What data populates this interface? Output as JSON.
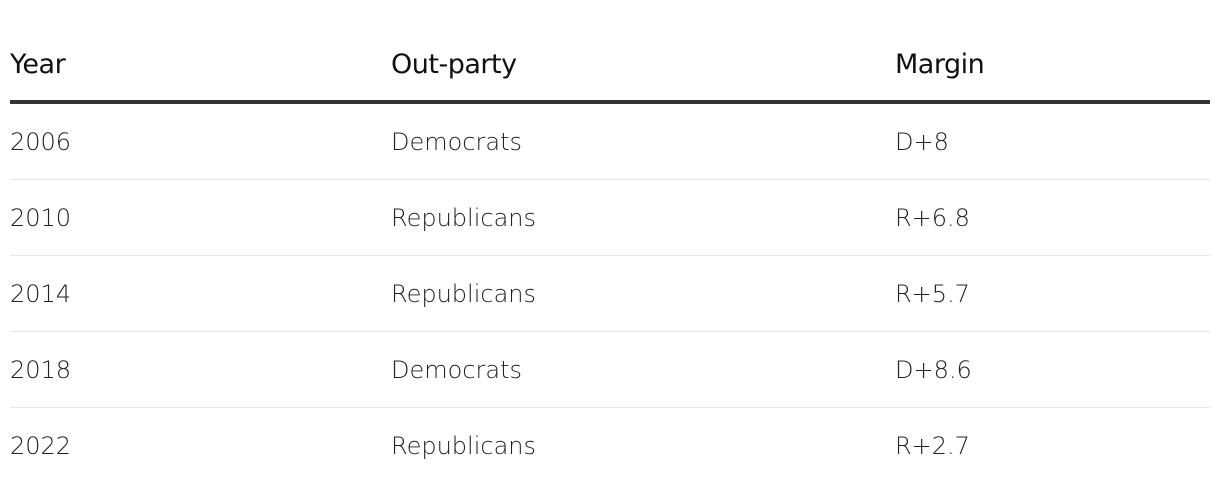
{
  "table": {
    "headers": [
      "Year",
      "Out-party",
      "Margin"
    ],
    "rows": [
      [
        "2006",
        "Democrats",
        "D+8"
      ],
      [
        "2010",
        "Republicans",
        "R+6.8"
      ],
      [
        "2014",
        "Republicans",
        "R+5.7"
      ],
      [
        "2018",
        "Democrats",
        "D+8.6"
      ],
      [
        "2022",
        "Republicans",
        "R+2.7"
      ]
    ]
  }
}
